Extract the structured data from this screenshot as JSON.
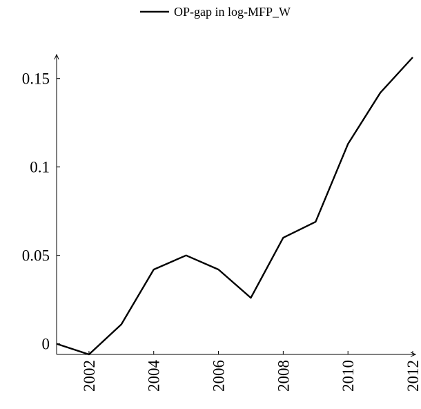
{
  "chart_data": {
    "type": "line",
    "x": [
      2001,
      2002,
      2003,
      2004,
      2005,
      2006,
      2007,
      2008,
      2009,
      2010,
      2011,
      2012
    ],
    "series": [
      {
        "name": "OP-gap in log-MFP_W",
        "color": "#000000",
        "values": [
          0,
          -0.006,
          0.011,
          0.042,
          0.05,
          0.042,
          0.026,
          0.06,
          0.069,
          0.113,
          0.142,
          0.162
        ]
      }
    ],
    "xlim": [
      2001,
      2012
    ],
    "xticks": [
      2002,
      2004,
      2006,
      2008,
      2010,
      2012
    ],
    "ylim": [
      -0.006,
      0.162
    ],
    "yticks": [
      0,
      0.05,
      0.1,
      0.15
    ],
    "legend": "top"
  }
}
